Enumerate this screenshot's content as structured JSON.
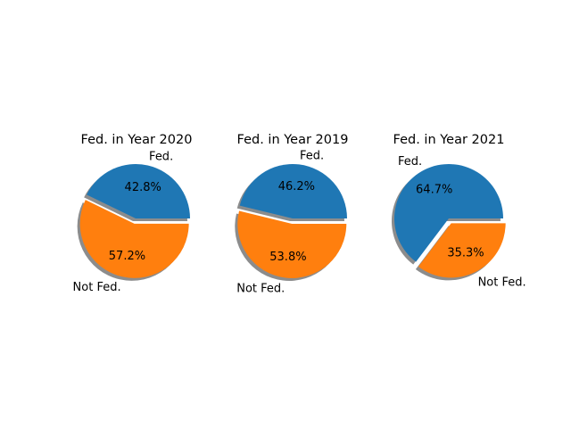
{
  "colors": {
    "fed": "#1f77b4",
    "not_fed": "#ff7f0e",
    "shadow": "#7f7f7f"
  },
  "chart_data": [
    {
      "type": "pie",
      "title": "Fed. in Year 2020",
      "labels": [
        "Fed.",
        "Not Fed."
      ],
      "values": [
        42.8,
        57.2
      ],
      "pct_labels": [
        "42.8%",
        "57.2%"
      ],
      "exploded": "Not Fed.",
      "shadow": true
    },
    {
      "type": "pie",
      "title": "Fed. in Year 2019",
      "labels": [
        "Fed.",
        "Not Fed."
      ],
      "values": [
        46.2,
        53.8
      ],
      "pct_labels": [
        "46.2%",
        "53.8%"
      ],
      "exploded": "Not Fed.",
      "shadow": true
    },
    {
      "type": "pie",
      "title": "Fed. in Year 2021",
      "labels": [
        "Fed.",
        "Not Fed."
      ],
      "values": [
        64.7,
        35.3
      ],
      "pct_labels": [
        "64.7%",
        "35.3%"
      ],
      "exploded": "Not Fed.",
      "shadow": true
    }
  ]
}
